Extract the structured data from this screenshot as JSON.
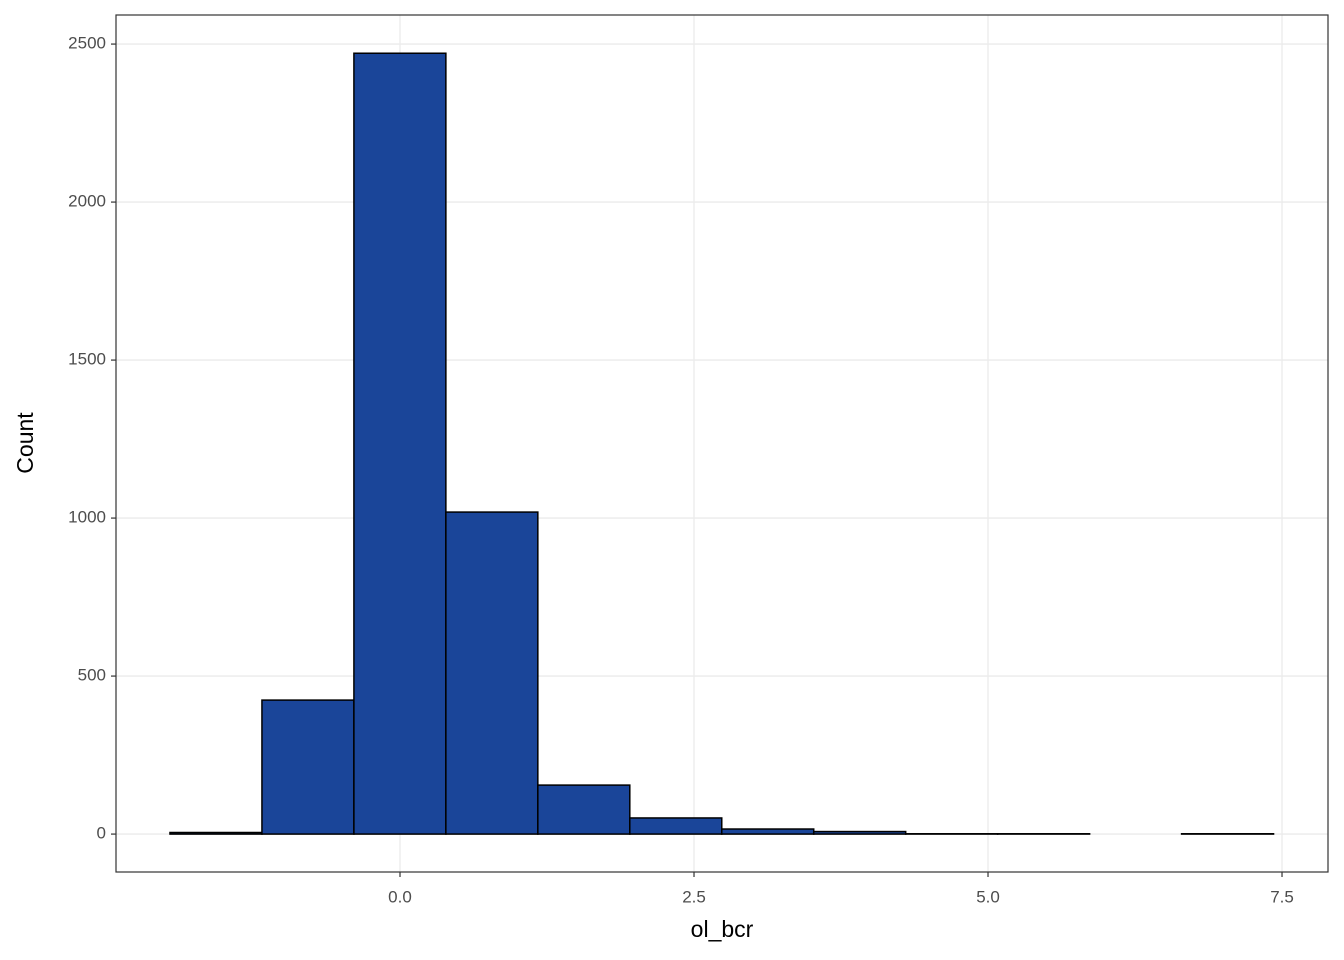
{
  "chart_data": {
    "type": "histogram",
    "x_label": "ol_bcr",
    "y_label": "Count",
    "bins": [
      -1.956,
      -1.174,
      -0.392,
      0.39,
      1.172,
      1.954,
      2.736,
      3.518,
      4.3,
      5.082,
      5.864,
      6.646,
      7.428
    ],
    "values": [
      5,
      424,
      2471,
      1019,
      155,
      51,
      16,
      8,
      1,
      1,
      0,
      1
    ],
    "color": "#1a4599",
    "edge_color": "#000000",
    "xlim": [
      -2.415,
      7.891
    ],
    "ylim": [
      -120,
      2592
    ],
    "xticks": [
      {
        "value": 0,
        "label": "0.0"
      },
      {
        "value": 2.5,
        "label": "2.5"
      },
      {
        "value": 5,
        "label": "5.0"
      },
      {
        "value": 7.5,
        "label": "7.5"
      }
    ],
    "yticks": [
      0,
      500,
      1000,
      1500,
      2000,
      2500
    ],
    "grid": true
  }
}
